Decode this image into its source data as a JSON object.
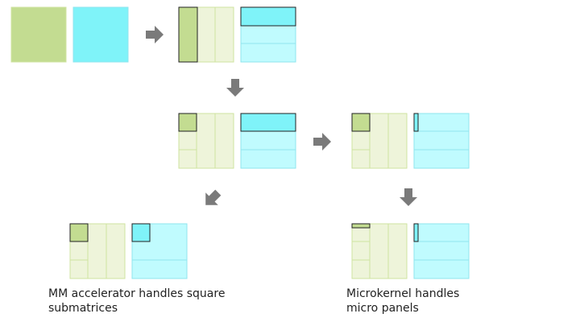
{
  "captions": {
    "accelerator_line1": "MM accelerator handles square",
    "accelerator_line2": "submatrices",
    "microkernel_line1": "Microkernel handles",
    "microkernel_line2": "micro panels"
  },
  "colors": {
    "matrix_a": "#c3dc91",
    "matrix_a_light": "#eef4da",
    "matrix_a_border": "#cfe3a0",
    "matrix_b": "#7ff3f9",
    "matrix_b_light": "#c0fbfe",
    "matrix_b_border": "#8fe6ee",
    "highlight_border": "#222222",
    "arrow": "#7a7a7a"
  }
}
